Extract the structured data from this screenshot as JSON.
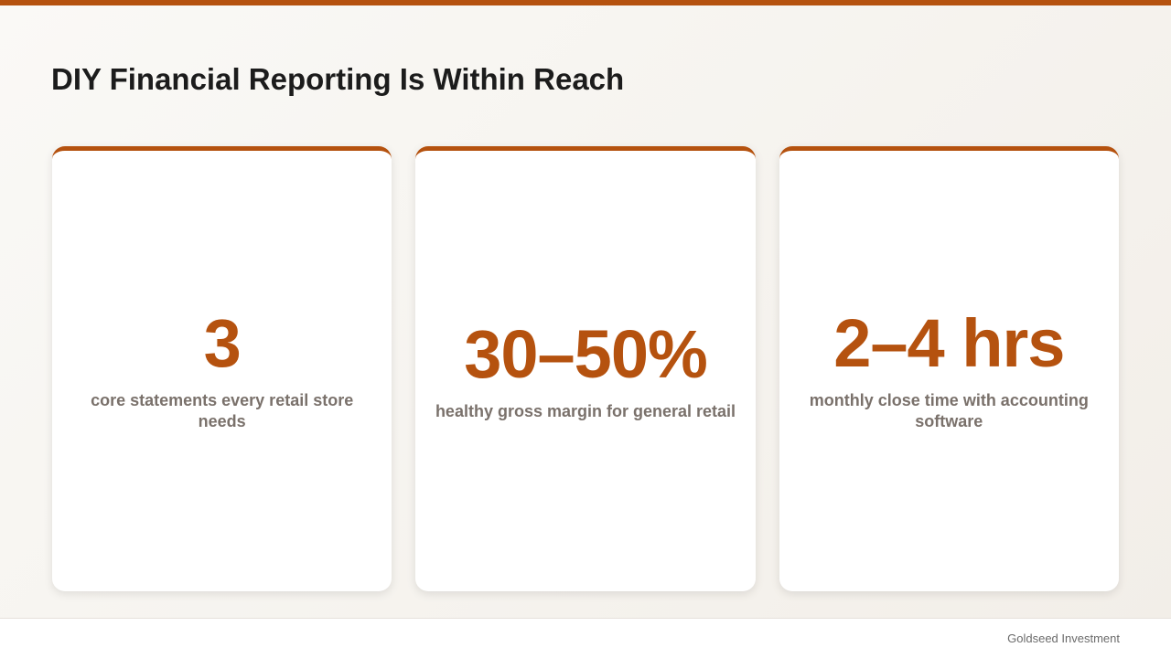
{
  "header": {
    "title": "DIY Financial Reporting Is Within Reach"
  },
  "stats": [
    {
      "value": "3",
      "label": "core statements every retail store needs"
    },
    {
      "value": "30–50%",
      "label": "healthy gross margin for general retail"
    },
    {
      "value": "2–4 hrs",
      "label": "monthly close time with accounting software"
    }
  ],
  "footer": {
    "brand": "Goldseed Investment"
  }
}
